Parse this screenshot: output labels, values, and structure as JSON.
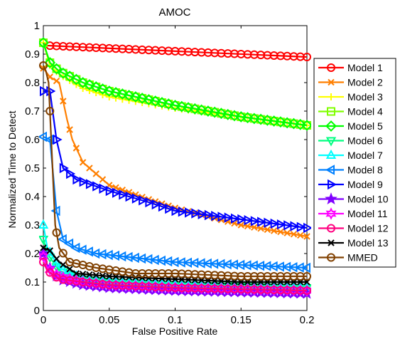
{
  "chart_data": {
    "type": "line",
    "title": "AMOC",
    "xlabel": "False Positive Rate",
    "ylabel": "Normalized Time to Detect",
    "xlim": [
      0,
      0.2
    ],
    "ylim": [
      0,
      1
    ],
    "xticks": [
      "0",
      "0.05",
      "0.1",
      "0.15",
      "0.2"
    ],
    "yticks": [
      "0",
      "0.1",
      "0.2",
      "0.3",
      "0.4",
      "0.5",
      "0.6",
      "0.7",
      "0.8",
      "0.9",
      "1"
    ],
    "grid": false,
    "legend_position": "right",
    "series": [
      {
        "name": "Model 1",
        "color": "#ff0000",
        "marker": "circle",
        "points": [
          [
            0,
            0.94
          ],
          [
            0.003,
            0.93
          ],
          [
            0.2,
            0.89
          ]
        ]
      },
      {
        "name": "Model 2",
        "color": "#ff7f00",
        "marker": "x",
        "points": [
          [
            0,
            0.85
          ],
          [
            0.005,
            0.82
          ],
          [
            0.012,
            0.8
          ],
          [
            0.018,
            0.67
          ],
          [
            0.022,
            0.6
          ],
          [
            0.03,
            0.52
          ],
          [
            0.05,
            0.44
          ],
          [
            0.08,
            0.39
          ],
          [
            0.1,
            0.36
          ],
          [
            0.15,
            0.3
          ],
          [
            0.2,
            0.26
          ]
        ]
      },
      {
        "name": "Model 3",
        "color": "#ffff00",
        "marker": "plus",
        "points": [
          [
            0,
            0.94
          ],
          [
            0.005,
            0.86
          ],
          [
            0.012,
            0.83
          ],
          [
            0.03,
            0.78
          ],
          [
            0.05,
            0.75
          ],
          [
            0.1,
            0.71
          ],
          [
            0.15,
            0.68
          ],
          [
            0.2,
            0.65
          ]
        ]
      },
      {
        "name": "Model 4",
        "color": "#80ff00",
        "marker": "square",
        "points": [
          [
            0,
            0.94
          ],
          [
            0.005,
            0.87
          ],
          [
            0.012,
            0.84
          ],
          [
            0.03,
            0.8
          ],
          [
            0.05,
            0.77
          ],
          [
            0.1,
            0.72
          ],
          [
            0.15,
            0.68
          ],
          [
            0.2,
            0.65
          ]
        ]
      },
      {
        "name": "Model 5",
        "color": "#00ff00",
        "marker": "diamond",
        "points": [
          [
            0,
            0.94
          ],
          [
            0.005,
            0.87
          ],
          [
            0.012,
            0.84
          ],
          [
            0.03,
            0.8
          ],
          [
            0.05,
            0.77
          ],
          [
            0.1,
            0.72
          ],
          [
            0.15,
            0.68
          ],
          [
            0.2,
            0.65
          ]
        ]
      },
      {
        "name": "Model 6",
        "color": "#00ff80",
        "marker": "triangle-down",
        "points": [
          [
            0,
            0.25
          ],
          [
            0.003,
            0.2
          ],
          [
            0.012,
            0.14
          ],
          [
            0.03,
            0.11
          ],
          [
            0.05,
            0.1
          ],
          [
            0.1,
            0.09
          ],
          [
            0.15,
            0.085
          ],
          [
            0.2,
            0.08
          ]
        ]
      },
      {
        "name": "Model 7",
        "color": "#00ffff",
        "marker": "triangle-up",
        "points": [
          [
            0,
            0.3
          ],
          [
            0.003,
            0.22
          ],
          [
            0.012,
            0.15
          ],
          [
            0.03,
            0.11
          ],
          [
            0.05,
            0.1
          ],
          [
            0.1,
            0.09
          ],
          [
            0.15,
            0.085
          ],
          [
            0.2,
            0.08
          ]
        ]
      },
      {
        "name": "Model 8",
        "color": "#0080ff",
        "marker": "triangle-left",
        "points": [
          [
            0,
            0.61
          ],
          [
            0.005,
            0.6
          ],
          [
            0.01,
            0.35
          ],
          [
            0.015,
            0.25
          ],
          [
            0.025,
            0.22
          ],
          [
            0.04,
            0.2
          ],
          [
            0.06,
            0.19
          ],
          [
            0.1,
            0.17
          ],
          [
            0.15,
            0.16
          ],
          [
            0.2,
            0.15
          ]
        ]
      },
      {
        "name": "Model 9",
        "color": "#0000ff",
        "marker": "triangle-right",
        "points": [
          [
            0,
            0.77
          ],
          [
            0.005,
            0.77
          ],
          [
            0.01,
            0.6
          ],
          [
            0.015,
            0.5
          ],
          [
            0.025,
            0.46
          ],
          [
            0.05,
            0.42
          ],
          [
            0.08,
            0.38
          ],
          [
            0.1,
            0.35
          ],
          [
            0.15,
            0.32
          ],
          [
            0.2,
            0.29
          ]
        ]
      },
      {
        "name": "Model 10",
        "color": "#8000ff",
        "marker": "star",
        "points": [
          [
            0,
            0.2
          ],
          [
            0.003,
            0.16
          ],
          [
            0.012,
            0.11
          ],
          [
            0.03,
            0.09
          ],
          [
            0.05,
            0.08
          ],
          [
            0.1,
            0.07
          ],
          [
            0.15,
            0.065
          ],
          [
            0.2,
            0.06
          ]
        ]
      },
      {
        "name": "Model 11",
        "color": "#ff00ff",
        "marker": "hexagram",
        "points": [
          [
            0,
            0.19
          ],
          [
            0.003,
            0.15
          ],
          [
            0.012,
            0.12
          ],
          [
            0.03,
            0.1
          ],
          [
            0.05,
            0.09
          ],
          [
            0.1,
            0.08
          ],
          [
            0.15,
            0.075
          ],
          [
            0.2,
            0.07
          ]
        ]
      },
      {
        "name": "Model 12",
        "color": "#ff0080",
        "marker": "circle",
        "points": [
          [
            0,
            0.17
          ],
          [
            0.003,
            0.14
          ],
          [
            0.012,
            0.11
          ],
          [
            0.03,
            0.1
          ],
          [
            0.05,
            0.09
          ],
          [
            0.1,
            0.08
          ],
          [
            0.15,
            0.075
          ],
          [
            0.2,
            0.07
          ]
        ]
      },
      {
        "name": "Model 13",
        "color": "#000000",
        "marker": "x",
        "points": [
          [
            0,
            0.22
          ],
          [
            0.005,
            0.21
          ],
          [
            0.012,
            0.17
          ],
          [
            0.025,
            0.13
          ],
          [
            0.05,
            0.12
          ],
          [
            0.1,
            0.11
          ],
          [
            0.15,
            0.1
          ],
          [
            0.2,
            0.1
          ]
        ]
      },
      {
        "name": "MMED",
        "color": "#804000",
        "marker": "circle",
        "points": [
          [
            0,
            0.86
          ],
          [
            0.002,
            0.84
          ],
          [
            0.004,
            0.8
          ],
          [
            0.006,
            0.6
          ],
          [
            0.009,
            0.3
          ],
          [
            0.012,
            0.22
          ],
          [
            0.02,
            0.17
          ],
          [
            0.04,
            0.15
          ],
          [
            0.07,
            0.13
          ],
          [
            0.1,
            0.13
          ],
          [
            0.15,
            0.12
          ],
          [
            0.2,
            0.12
          ]
        ]
      }
    ]
  }
}
